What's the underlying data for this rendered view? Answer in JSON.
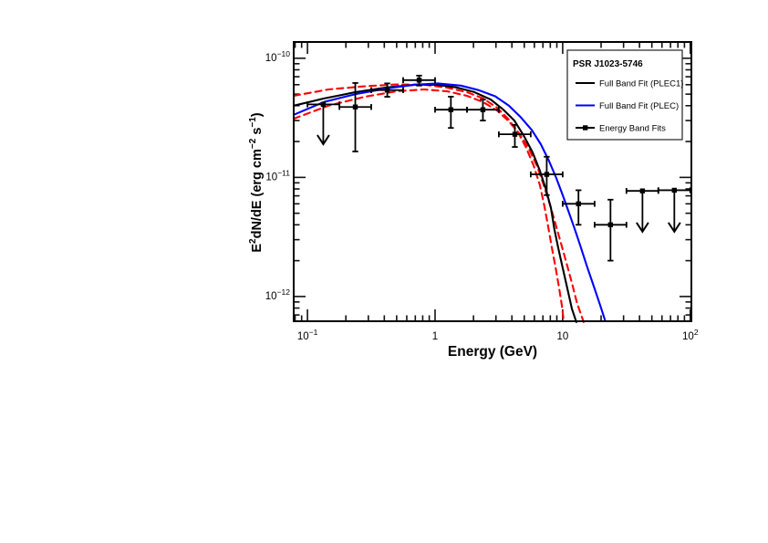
{
  "chart_data": {
    "type": "line",
    "title": "",
    "xlabel": "Energy (GeV)",
    "ylabel": "E2dN/dE (erg cm-2 s-1)",
    "ylabel_segments": [
      {
        "t": "E"
      },
      {
        "sup": "2"
      },
      {
        "t": "dN/dE (erg cm"
      },
      {
        "sup": "−2"
      },
      {
        "t": " s"
      },
      {
        "sup": "−1"
      },
      {
        "t": ")"
      }
    ],
    "xscale": "log",
    "yscale": "log",
    "grid": false,
    "xlim": [
      0.078,
      102
    ],
    "ylim": [
      6.2e-13,
      1.37e-10
    ],
    "x_ticks": [
      {
        "v": 0.1,
        "base": "10",
        "exp": "−1"
      },
      {
        "v": 1,
        "base": "1",
        "exp": ""
      },
      {
        "v": 10,
        "base": "10",
        "exp": ""
      },
      {
        "v": 100,
        "base": "10",
        "exp": "2"
      }
    ],
    "y_ticks": [
      {
        "v": 1e-10,
        "base": "10",
        "exp": "−10"
      },
      {
        "v": 1e-11,
        "base": "10",
        "exp": "−11"
      },
      {
        "v": 1e-12,
        "base": "10",
        "exp": "−12"
      }
    ],
    "colors": {
      "plec1": "#000000",
      "plec": "#0000ff",
      "envelope": "#ff0000",
      "points": "#000000"
    },
    "legend": {
      "title": "PSR J1023-5746",
      "position": "top-right",
      "entries": [
        {
          "label": "Full Band Fit (PLEC1)",
          "color": "#000000",
          "style": "solid",
          "marker": false
        },
        {
          "label": "Full Band Fit (PLEC)",
          "color": "#0000ff",
          "style": "solid",
          "marker": false
        },
        {
          "label": "Energy Band Fits",
          "color": "#000000",
          "style": "solid",
          "marker": true
        }
      ]
    },
    "series": [
      {
        "name": "Full Band Fit (PLEC1)",
        "color": "#000000",
        "style": "solid",
        "points": [
          [
            0.078,
            4e-11
          ],
          [
            0.135,
            4.6e-11
          ],
          [
            0.239,
            5.2e-11
          ],
          [
            0.426,
            5.7e-11
          ],
          [
            0.7,
            6e-11
          ],
          [
            1.02,
            6e-11
          ],
          [
            1.46,
            5.7e-11
          ],
          [
            2.03,
            5.2e-11
          ],
          [
            2.73,
            4.5e-11
          ],
          [
            3.43,
            3.7e-11
          ],
          [
            4.18,
            3e-11
          ],
          [
            5.0,
            2.2e-11
          ],
          [
            5.8,
            1.63e-11
          ],
          [
            6.6,
            1.15e-11
          ],
          [
            7.4,
            7.9e-12
          ],
          [
            8.1,
            5.5e-12
          ],
          [
            8.6,
            3.7e-12
          ],
          [
            9.2,
            2.6e-12
          ],
          [
            10.0,
            1.74e-12
          ],
          [
            10.9,
            1.16e-12
          ],
          [
            11.8,
            7.9e-13
          ],
          [
            12.8,
            6.1e-13
          ]
        ]
      },
      {
        "name": "Full Band Fit (PLEC)",
        "color": "#0000ff",
        "style": "solid",
        "points": [
          [
            0.078,
            3.35e-11
          ],
          [
            0.135,
            4.3e-11
          ],
          [
            0.239,
            5e-11
          ],
          [
            0.426,
            5.6e-11
          ],
          [
            0.7,
            6e-11
          ],
          [
            1.05,
            6.15e-11
          ],
          [
            1.59,
            5.9e-11
          ],
          [
            2.2,
            5.4e-11
          ],
          [
            2.96,
            4.8e-11
          ],
          [
            3.79,
            4e-11
          ],
          [
            4.69,
            3.2e-11
          ],
          [
            5.72,
            2.5e-11
          ],
          [
            6.74,
            1.9e-11
          ],
          [
            7.8,
            1.38e-11
          ],
          [
            8.9,
            9.9e-12
          ],
          [
            10.0,
            7.1e-12
          ],
          [
            11.1,
            5.2e-12
          ],
          [
            12.4,
            3.7e-12
          ],
          [
            13.7,
            2.7e-12
          ],
          [
            15.4,
            1.83e-12
          ],
          [
            17.3,
            1.27e-12
          ],
          [
            19.4,
            8.8e-13
          ],
          [
            21.4,
            6.4e-13
          ]
        ]
      },
      {
        "name": "PLEC1 fit uncertainty (upper)",
        "color": "#ff0000",
        "style": "dashed",
        "points": [
          [
            0.078,
            4.84e-11
          ],
          [
            0.146,
            5.47e-11
          ],
          [
            0.282,
            5.82e-11
          ],
          [
            0.5,
            6.03e-11
          ],
          [
            0.82,
            6e-11
          ],
          [
            1.24,
            5.67e-11
          ],
          [
            1.78,
            5.19e-11
          ],
          [
            2.39,
            4.59e-11
          ],
          [
            3.06,
            3.85e-11
          ],
          [
            3.73,
            3.11e-11
          ],
          [
            4.47,
            2.39e-11
          ],
          [
            5.18,
            1.77e-11
          ],
          [
            5.9,
            1.27e-11
          ],
          [
            6.62,
            8.7e-12
          ],
          [
            7.2,
            5.7e-12
          ],
          [
            7.69,
            3.9e-12
          ],
          [
            8.21,
            2.6e-12
          ],
          [
            8.77,
            1.79e-12
          ],
          [
            9.37,
            1.19e-12
          ],
          [
            9.85,
            8.4e-13
          ],
          [
            10.2,
            6.2e-13
          ]
        ]
      },
      {
        "name": "PLEC1 fit uncertainty (lower)",
        "color": "#ff0000",
        "style": "dashed",
        "points": [
          [
            0.078,
            3.11e-11
          ],
          [
            0.146,
            4e-11
          ],
          [
            0.282,
            4.75e-11
          ],
          [
            0.5,
            5.28e-11
          ],
          [
            0.82,
            5.47e-11
          ],
          [
            1.24,
            5.28e-11
          ],
          [
            1.78,
            4.84e-11
          ],
          [
            2.39,
            4.28e-11
          ],
          [
            3.06,
            3.65e-11
          ],
          [
            3.79,
            2.95e-11
          ],
          [
            4.61,
            2.31e-11
          ],
          [
            5.44,
            1.74e-11
          ],
          [
            6.31,
            1.24e-11
          ],
          [
            7.08,
            8.7e-12
          ],
          [
            7.95,
            5.9e-12
          ],
          [
            8.77,
            4.1e-12
          ],
          [
            9.7,
            2.8e-12
          ],
          [
            10.7,
            1.92e-12
          ],
          [
            11.8,
            1.3e-12
          ],
          [
            12.95,
            8.8e-13
          ],
          [
            14.6,
            6.1e-13
          ]
        ]
      }
    ],
    "data_points": [
      {
        "E": 0.133,
        "E_lo": 0.1,
        "E_hi": 0.178,
        "F": 4.1e-11,
        "upper_limit": true,
        "arrow_to": 1.9e-11
      },
      {
        "E": 0.237,
        "E_lo": 0.178,
        "E_hi": 0.316,
        "F": 3.9e-11,
        "F_hi": 6.2e-11,
        "F_lo": 1.65e-11
      },
      {
        "E": 0.422,
        "E_lo": 0.316,
        "E_hi": 0.562,
        "F": 5.4e-11,
        "F_hi": 6.15e-11,
        "F_lo": 4.75e-11
      },
      {
        "E": 0.75,
        "E_lo": 0.562,
        "E_hi": 1.0,
        "F": 6.55e-11,
        "F_hi": 7.15e-11,
        "F_lo": 5.9e-11
      },
      {
        "E": 1.33,
        "E_lo": 1.0,
        "E_hi": 1.78,
        "F": 3.7e-11,
        "F_hi": 4.76e-11,
        "F_lo": 2.6e-11
      },
      {
        "E": 2.37,
        "E_lo": 1.78,
        "E_hi": 3.16,
        "F": 3.7e-11,
        "F_hi": 4.5e-11,
        "F_lo": 3e-11
      },
      {
        "E": 4.22,
        "E_lo": 3.16,
        "E_hi": 5.62,
        "F": 2.3e-11,
        "F_hi": 2.76e-11,
        "F_lo": 1.8e-11
      },
      {
        "E": 7.5,
        "E_lo": 5.62,
        "E_hi": 10.0,
        "F": 1.06e-11,
        "F_hi": 1.49e-11,
        "F_lo": 7.1e-12
      },
      {
        "E": 13.3,
        "E_lo": 10.0,
        "E_hi": 17.8,
        "F": 6e-12,
        "F_hi": 7.8e-12,
        "F_lo": 4e-12
      },
      {
        "E": 23.7,
        "E_lo": 17.8,
        "E_hi": 31.6,
        "F": 4e-12,
        "F_hi": 6.5e-12,
        "F_lo": 2e-12
      },
      {
        "E": 42.2,
        "E_lo": 31.6,
        "E_hi": 56.2,
        "F": 7.7e-12,
        "upper_limit": true,
        "arrow_to": 3.5e-12
      },
      {
        "E": 75.0,
        "E_lo": 56.2,
        "E_hi": 100.0,
        "F": 7.8e-12,
        "upper_limit": true,
        "arrow_to": 3.5e-12
      }
    ]
  }
}
